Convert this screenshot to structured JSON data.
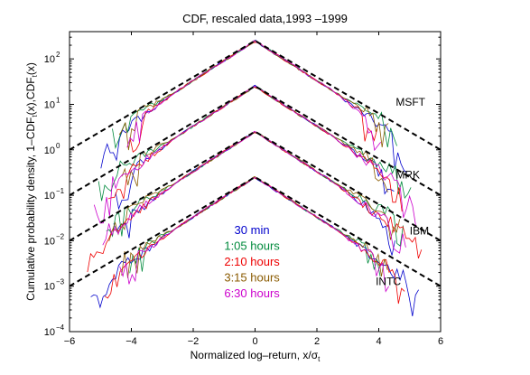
{
  "chart_data": {
    "type": "line",
    "title": "CDF, rescaled data,1993 –1999",
    "xlabel": "Normalized log–return, x/σ",
    "xlabel_sub": "t",
    "ylabel": "Cumulative probability density, 1–CDF",
    "ylabel_sub1": "t",
    "ylabel_mid": "(x),CDF",
    "ylabel_sub2": "t",
    "ylabel_end": "(x)",
    "xlim": [
      -6,
      6
    ],
    "ylog": true,
    "ylim_exp": [
      -4,
      2.6
    ],
    "xticks": [
      "−6",
      "−4",
      "−2",
      "0",
      "2",
      "4",
      "6"
    ],
    "xtick_values": [
      -6,
      -4,
      -2,
      0,
      2,
      4,
      6
    ],
    "yticks": [
      {
        "exp": -4,
        "label": "10",
        "sup": "−4"
      },
      {
        "exp": -3,
        "label": "10",
        "sup": "−3"
      },
      {
        "exp": -2,
        "label": "10",
        "sup": "−2"
      },
      {
        "exp": -1,
        "label": "10",
        "sup": "−1"
      },
      {
        "exp": 0,
        "label": "10",
        "sup": "0"
      },
      {
        "exp": 1,
        "label": "10",
        "sup": "1"
      },
      {
        "exp": 2,
        "label": "10",
        "sup": "2"
      }
    ],
    "groups": [
      {
        "name": "MSFT",
        "peak_exp": 2.4,
        "label_x": 4.55,
        "label_exp": 1.05
      },
      {
        "name": "MRK",
        "peak_exp": 1.4,
        "label_x": 4.55,
        "label_exp": -0.55
      },
      {
        "name": "IBM",
        "peak_exp": 0.4,
        "label_x": 5.0,
        "label_exp": -1.78
      },
      {
        "name": "INTC",
        "peak_exp": -0.6,
        "label_x": 3.9,
        "label_exp": -2.9
      }
    ],
    "fit_slope_per_unit_x": 0.4,
    "series": [
      {
        "name": "30 min",
        "color": "#0000cc",
        "legend_exp": -1.75
      },
      {
        "name": "1:05 hours",
        "color": "#008a3c",
        "legend_exp": -2.1
      },
      {
        "name": "2:10 hours",
        "color": "#ee0000",
        "legend_exp": -2.45
      },
      {
        "name": "3:15 hours",
        "color": "#8a5a00",
        "legend_exp": -2.8
      },
      {
        "name": "6:30 hours",
        "color": "#cc00cc",
        "legend_exp": -3.15
      }
    ],
    "legend_x": -0.1,
    "fit_line_color": "#000000",
    "grid": false
  }
}
